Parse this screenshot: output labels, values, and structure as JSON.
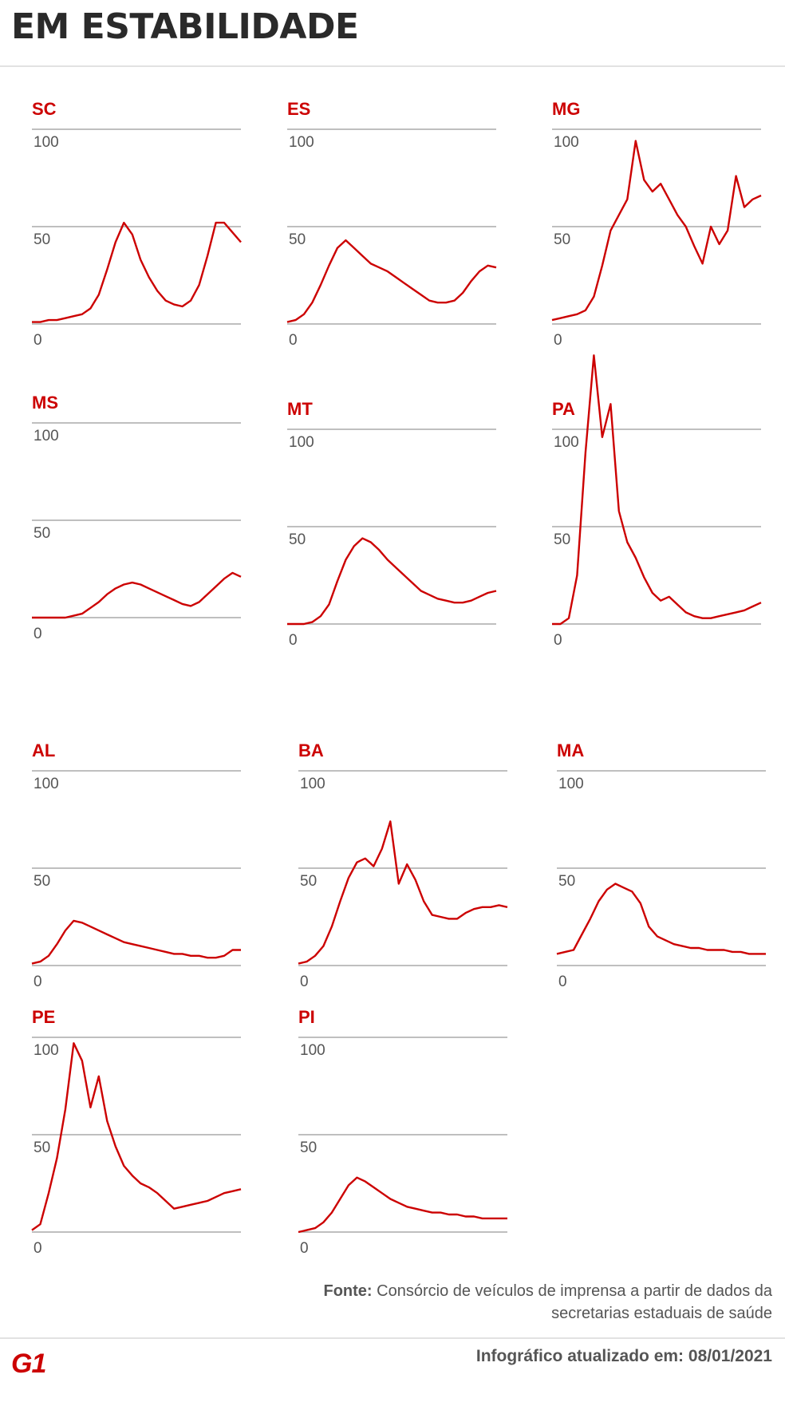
{
  "title": "EM ESTABILIDADE",
  "source_label": "Fonte:",
  "source_text": "Consórcio de veículos de imprensa a partir de dados da secretarias estaduais de saúde",
  "logo": "G1",
  "updated": "Infográfico atualizado em: 08/01/2021",
  "colors": {
    "series": "#cc0000",
    "title": "#2a2a2a",
    "grid": "#aaaaaa"
  },
  "chart_data": [
    {
      "type": "line",
      "title": "SC",
      "ylim": [
        0,
        100
      ],
      "yticks": [
        0,
        50,
        100
      ],
      "values": [
        1,
        1,
        2,
        2,
        3,
        4,
        5,
        8,
        15,
        28,
        42,
        52,
        46,
        33,
        24,
        17,
        12,
        10,
        9,
        12,
        20,
        35,
        52,
        52,
        47,
        42
      ]
    },
    {
      "type": "line",
      "title": "ES",
      "ylim": [
        0,
        100
      ],
      "yticks": [
        0,
        50,
        100
      ],
      "values": [
        1,
        2,
        5,
        11,
        20,
        30,
        39,
        43,
        39,
        35,
        31,
        29,
        27,
        24,
        21,
        18,
        15,
        12,
        11,
        11,
        12,
        16,
        22,
        27,
        30,
        29
      ]
    },
    {
      "type": "line",
      "title": "MG",
      "ylim": [
        0,
        100
      ],
      "yticks": [
        0,
        50,
        100
      ],
      "values": [
        2,
        3,
        4,
        5,
        7,
        14,
        30,
        48,
        56,
        64,
        94,
        74,
        68,
        72,
        64,
        56,
        50,
        40,
        31,
        50,
        41,
        48,
        76,
        60,
        64,
        66
      ]
    },
    {
      "type": "line",
      "title": "MS",
      "ylim": [
        0,
        100
      ],
      "yticks": [
        0,
        50,
        100
      ],
      "values": [
        0,
        0,
        0,
        0,
        0,
        1,
        2,
        5,
        8,
        12,
        15,
        17,
        18,
        17,
        15,
        13,
        11,
        9,
        7,
        6,
        8,
        12,
        16,
        20,
        23,
        21
      ]
    },
    {
      "type": "line",
      "title": "MT",
      "ylim": [
        0,
        100
      ],
      "yticks": [
        0,
        50,
        100
      ],
      "values": [
        0,
        0,
        0,
        1,
        4,
        10,
        22,
        33,
        40,
        44,
        42,
        38,
        33,
        29,
        25,
        21,
        17,
        15,
        13,
        12,
        11,
        11,
        12,
        14,
        16,
        17
      ]
    },
    {
      "type": "line",
      "title": "PA",
      "ylim": [
        0,
        100
      ],
      "yticks": [
        0,
        50,
        100
      ],
      "values": [
        0,
        0,
        3,
        25,
        88,
        138,
        96,
        113,
        58,
        42,
        34,
        24,
        16,
        12,
        14,
        10,
        6,
        4,
        3,
        3,
        4,
        5,
        6,
        7,
        9,
        11
      ]
    },
    {
      "type": "line",
      "title": "AL",
      "ylim": [
        0,
        100
      ],
      "yticks": [
        0,
        50,
        100
      ],
      "values": [
        1,
        2,
        5,
        11,
        18,
        23,
        22,
        20,
        18,
        16,
        14,
        12,
        11,
        10,
        9,
        8,
        7,
        6,
        6,
        5,
        5,
        4,
        4,
        5,
        8,
        8
      ]
    },
    {
      "type": "line",
      "title": "BA",
      "ylim": [
        0,
        100
      ],
      "yticks": [
        0,
        50,
        100
      ],
      "values": [
        1,
        2,
        5,
        10,
        20,
        33,
        45,
        53,
        55,
        51,
        60,
        74,
        42,
        52,
        44,
        33,
        26,
        25,
        24,
        24,
        27,
        29,
        30,
        30,
        31,
        30
      ]
    },
    {
      "type": "line",
      "title": "MA",
      "ylim": [
        0,
        100
      ],
      "yticks": [
        0,
        50,
        100
      ],
      "values": [
        6,
        7,
        8,
        16,
        24,
        33,
        39,
        42,
        40,
        38,
        32,
        20,
        15,
        13,
        11,
        10,
        9,
        9,
        8,
        8,
        8,
        7,
        7,
        6,
        6,
        6
      ]
    },
    {
      "type": "line",
      "title": "PE",
      "ylim": [
        0,
        100
      ],
      "yticks": [
        0,
        50,
        100
      ],
      "values": [
        1,
        4,
        20,
        38,
        63,
        97,
        88,
        64,
        80,
        57,
        44,
        34,
        29,
        25,
        23,
        20,
        16,
        12,
        13,
        14,
        15,
        16,
        18,
        20,
        21,
        22
      ]
    },
    {
      "type": "line",
      "title": "PI",
      "ylim": [
        0,
        100
      ],
      "yticks": [
        0,
        50,
        100
      ],
      "values": [
        0,
        1,
        2,
        5,
        10,
        17,
        24,
        28,
        26,
        23,
        20,
        17,
        15,
        13,
        12,
        11,
        10,
        10,
        9,
        9,
        8,
        8,
        7,
        7,
        7,
        7
      ]
    }
  ]
}
